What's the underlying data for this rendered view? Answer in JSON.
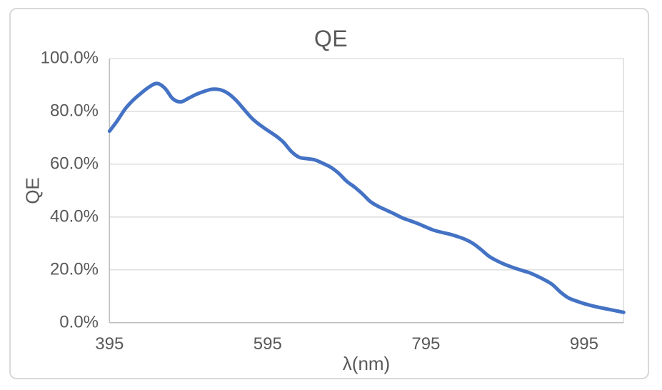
{
  "chart_data": {
    "type": "line",
    "title": "QE",
    "xlabel": "λ(nm)",
    "ylabel": "QE",
    "x": [
      395,
      405,
      415,
      425,
      435,
      445,
      455,
      465,
      475,
      485,
      495,
      505,
      515,
      525,
      535,
      545,
      555,
      565,
      575,
      585,
      595,
      605,
      615,
      625,
      635,
      645,
      655,
      665,
      675,
      685,
      695,
      705,
      715,
      725,
      735,
      745,
      755,
      765,
      775,
      785,
      795,
      805,
      815,
      825,
      835,
      845,
      855,
      865,
      875,
      885,
      895,
      905,
      915,
      925,
      935,
      945,
      955,
      965,
      975,
      985,
      995,
      1005,
      1015,
      1025,
      1035,
      1045
    ],
    "series": [
      {
        "name": "QE",
        "values": [
          72.5,
          76.5,
          81.0,
          84.3,
          86.9,
          89.2,
          90.6,
          88.8,
          84.8,
          83.6,
          85.0,
          86.5,
          87.6,
          88.4,
          88.2,
          86.8,
          84.2,
          80.8,
          77.4,
          74.9,
          72.8,
          70.8,
          68.3,
          64.8,
          62.6,
          62.1,
          61.6,
          60.3,
          58.8,
          56.5,
          53.5,
          51.3,
          48.7,
          45.8,
          44.0,
          42.6,
          41.2,
          39.7,
          38.6,
          37.5,
          36.2,
          35.0,
          34.2,
          33.5,
          32.6,
          31.5,
          29.9,
          27.6,
          25.1,
          23.4,
          22.0,
          20.9,
          19.9,
          19.0,
          17.7,
          16.2,
          14.4,
          11.6,
          9.4,
          8.2,
          7.2,
          6.4,
          5.7,
          5.1,
          4.5,
          3.9
        ]
      }
    ],
    "xlim": [
      395,
      1045
    ],
    "ylim": [
      0,
      100
    ],
    "x_ticks": [
      395,
      595,
      795,
      995
    ],
    "y_ticks": [
      {
        "value": 0,
        "label": "0.0%"
      },
      {
        "value": 20,
        "label": "20.0%"
      },
      {
        "value": 40,
        "label": "40.0%"
      },
      {
        "value": 60,
        "label": "60.0%"
      },
      {
        "value": 80,
        "label": "80.0%"
      },
      {
        "value": 100,
        "label": "100.0%"
      }
    ],
    "grid": "horizontal",
    "legend": "none",
    "smooth": true
  },
  "colors": {
    "line": "#4472C4",
    "text": "#595959",
    "gridline": "#D9D9D9",
    "axis": "#BFBFBF",
    "frame_border": "#D9D9D9"
  }
}
